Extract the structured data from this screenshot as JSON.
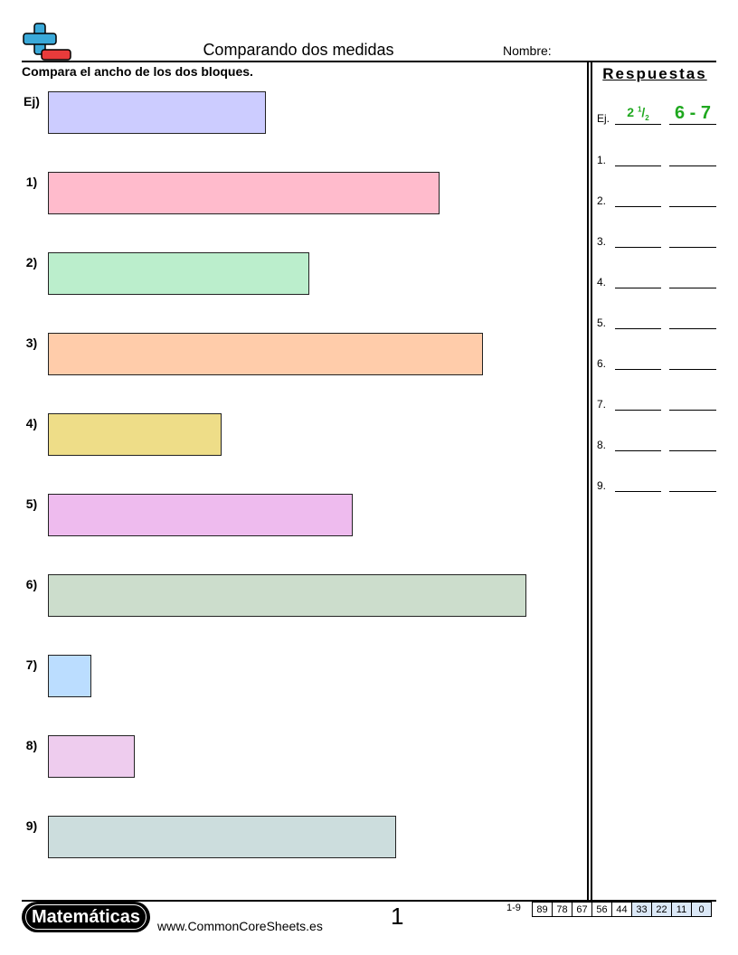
{
  "header": {
    "title": "Comparando dos medidas",
    "name_label": "Nombre:"
  },
  "instructions": "Compara el ancho de los dos bloques.",
  "questions": [
    {
      "label": "Ej)",
      "color": "#ccccff",
      "width_units": 5
    },
    {
      "label": "1)",
      "color": "#ffbbcc",
      "width_units": 9
    },
    {
      "label": "2)",
      "color": "#bbeecc",
      "width_units": 6
    },
    {
      "label": "3)",
      "color": "#ffccaa",
      "width_units": 10
    },
    {
      "label": "4)",
      "color": "#eedd88",
      "width_units": 4
    },
    {
      "label": "5)",
      "color": "#eebbee",
      "width_units": 7
    },
    {
      "label": "6)",
      "color": "#ccddcc",
      "width_units": 11
    },
    {
      "label": "7)",
      "color": "#bbddff",
      "width_units": 1
    },
    {
      "label": "8)",
      "color": "#eeccee",
      "width_units": 2
    },
    {
      "label": "9)",
      "color": "#ccdddd",
      "width_units": 8
    }
  ],
  "answers": {
    "title": "Respuestas",
    "example_label": "Ej.",
    "example_whole": "2",
    "example_num": "1",
    "example_den": "2",
    "example_range": "6 - 7",
    "example_color": "#1fa81f",
    "rows": [
      "1.",
      "2.",
      "3.",
      "4.",
      "5.",
      "6.",
      "7.",
      "8.",
      "9."
    ]
  },
  "footer": {
    "brand": "Matemáticas",
    "url": "www.CommonCoreSheets.es",
    "page_number": "1",
    "score_label": "1-9",
    "scores": [
      "89",
      "78",
      "67",
      "56",
      "44",
      "33",
      "22",
      "11",
      "0"
    ]
  }
}
